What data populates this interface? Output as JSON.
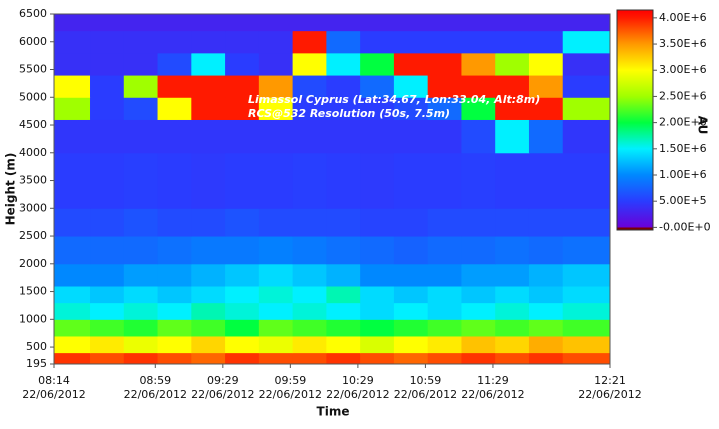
{
  "chart_data": {
    "type": "heatmap",
    "xlabel": "Time",
    "ylabel": "Height (m)",
    "colorbar_label": "AU",
    "annotations": [
      "Limassol Cyprus (Lat:34.67, Lon:33.04, Alt:8m)",
      "RCS@532 Resolution (50s, 7.5m)"
    ],
    "xlim": [
      "08:14",
      "12:21"
    ],
    "xticks": [
      "08:14",
      "08:59",
      "09:29",
      "09:59",
      "10:29",
      "10:59",
      "11:29",
      "12:21"
    ],
    "xtick_dates": [
      "22/06/2012",
      "22/06/2012",
      "22/06/2012",
      "22/06/2012",
      "22/06/2012",
      "22/06/2012",
      "22/06/2012",
      "22/06/2012"
    ],
    "ylim": [
      195,
      6500
    ],
    "yticks": [
      195,
      500,
      1000,
      1500,
      2000,
      2500,
      3000,
      3500,
      4000,
      4500,
      5000,
      5500,
      6000,
      6500
    ],
    "clim": [
      -50000,
      4150000
    ],
    "cticks": [
      {
        "value": 0,
        "label": "-0.00E+0"
      },
      {
        "value": 500000,
        "label": "5.00E+5"
      },
      {
        "value": 1000000,
        "label": "1.00E+6"
      },
      {
        "value": 1500000,
        "label": "1.50E+6"
      },
      {
        "value": 2000000,
        "label": "2.00E+6"
      },
      {
        "value": 2500000,
        "label": "2.50E+6"
      },
      {
        "value": 3000000,
        "label": "3.00E+6"
      },
      {
        "value": 3500000,
        "label": "3.50E+6"
      },
      {
        "value": 4000000,
        "label": "4.00E+6"
      }
    ],
    "colorscale": [
      [
        -50000,
        "#7a0000"
      ],
      [
        -1,
        "#7a0000"
      ],
      [
        0,
        "#6a00d8"
      ],
      [
        500000,
        "#2a3cff"
      ],
      [
        1000000,
        "#0088ff"
      ],
      [
        1500000,
        "#00f0ff"
      ],
      [
        2000000,
        "#00ff40"
      ],
      [
        2500000,
        "#a0ff00"
      ],
      [
        3000000,
        "#ffff00"
      ],
      [
        3500000,
        "#ff9900"
      ],
      [
        4000000,
        "#ff1a00"
      ],
      [
        4150000,
        "#ff0000"
      ]
    ],
    "time_bins": [
      "08:14",
      "08:30",
      "08:45",
      "09:00",
      "09:15",
      "09:30",
      "09:45",
      "10:00",
      "10:15",
      "10:30",
      "10:45",
      "11:00",
      "11:15",
      "11:30",
      "11:45",
      "12:00",
      "12:21"
    ],
    "height_bins": [
      195,
      400,
      700,
      1000,
      1300,
      1600,
      2000,
      2500,
      3000,
      4000,
      4600,
      5000,
      5400,
      5800,
      6200,
      6500
    ],
    "values": [
      [
        3900000,
        3800000,
        3900000,
        3800000,
        3700000,
        3900000,
        3800000,
        3800000,
        3900000,
        3800000,
        3700000,
        3800000,
        3900000,
        3800000,
        3900000,
        3800000
      ],
      [
        3000000,
        3100000,
        2900000,
        3000000,
        3200000,
        3000000,
        2900000,
        3100000,
        3000000,
        2800000,
        3000000,
        3100000,
        3300000,
        3200000,
        3400000,
        3300000
      ],
      [
        2300000,
        2200000,
        2100000,
        2300000,
        2200000,
        2000000,
        2300000,
        2200000,
        2100000,
        2000000,
        2100000,
        2200000,
        2300000,
        2200000,
        2300000,
        2200000
      ],
      [
        1600000,
        1500000,
        1600000,
        1500000,
        1700000,
        1600000,
        1500000,
        1600000,
        1500000,
        1400000,
        1500000,
        1400000,
        1500000,
        1600000,
        1500000,
        1600000
      ],
      [
        1400000,
        1300000,
        1400000,
        1300000,
        1400000,
        1500000,
        1600000,
        1500000,
        1700000,
        1400000,
        1300000,
        1400000,
        1300000,
        1400000,
        1300000,
        1400000
      ],
      [
        1000000,
        1000000,
        1100000,
        1100000,
        1200000,
        1300000,
        1400000,
        1300000,
        1200000,
        1000000,
        1000000,
        1000000,
        1100000,
        1100000,
        1200000,
        1300000
      ],
      [
        800000,
        800000,
        800000,
        850000,
        900000,
        900000,
        950000,
        900000,
        850000,
        800000,
        750000,
        800000,
        800000,
        850000,
        800000,
        850000
      ],
      [
        600000,
        600000,
        650000,
        600000,
        600000,
        650000,
        600000,
        600000,
        600000,
        550000,
        550000,
        600000,
        600000,
        600000,
        600000,
        600000
      ],
      [
        500000,
        500000,
        520000,
        500000,
        480000,
        500000,
        500000,
        520000,
        500000,
        480000,
        500000,
        500000,
        520000,
        500000,
        500000,
        500000
      ],
      [
        450000,
        450000,
        450000,
        450000,
        450000,
        450000,
        450000,
        450000,
        450000,
        450000,
        450000,
        450000,
        600000,
        1500000,
        800000,
        450000
      ],
      [
        2500000,
        500000,
        600000,
        3000000,
        4000000,
        4000000,
        3000000,
        500000,
        500000,
        500000,
        600000,
        800000,
        2000000,
        4000000,
        4000000,
        2500000
      ],
      [
        3000000,
        500000,
        2500000,
        4000000,
        4000000,
        4000000,
        3500000,
        600000,
        500000,
        800000,
        1500000,
        4000000,
        4000000,
        4000000,
        3500000,
        500000
      ],
      [
        400000,
        400000,
        400000,
        600000,
        1500000,
        500000,
        400000,
        3000000,
        1500000,
        2000000,
        4000000,
        4000000,
        3500000,
        2500000,
        3000000,
        400000
      ],
      [
        400000,
        400000,
        400000,
        400000,
        400000,
        400000,
        400000,
        4000000,
        800000,
        500000,
        500000,
        500000,
        500000,
        500000,
        500000,
        1500000
      ],
      [
        300000,
        300000,
        300000,
        300000,
        300000,
        300000,
        300000,
        300000,
        300000,
        300000,
        300000,
        300000,
        300000,
        300000,
        300000,
        300000
      ]
    ]
  }
}
